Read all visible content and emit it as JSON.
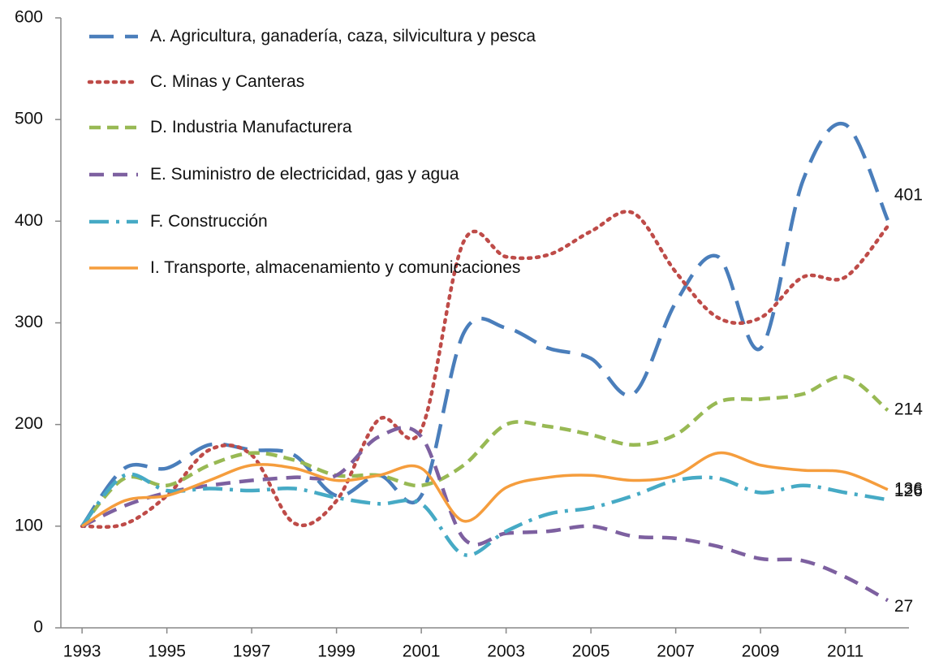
{
  "chart_data": {
    "type": "line",
    "x": [
      1993,
      1994,
      1995,
      1996,
      1997,
      1998,
      1999,
      2000,
      2001,
      2002,
      2003,
      2004,
      2005,
      2006,
      2007,
      2008,
      2009,
      2010,
      2011,
      2012
    ],
    "xlim": [
      1992.5,
      2012.5
    ],
    "xticks": [
      1993,
      1995,
      1997,
      1999,
      2001,
      2003,
      2005,
      2007,
      2009,
      2011
    ],
    "ylim": [
      0,
      600
    ],
    "yticks": [
      0,
      100,
      200,
      300,
      400,
      500,
      600
    ],
    "series": [
      {
        "name": "A. Agricultura, ganadería, caza, silvicultura y pesca",
        "color": "#4a7ebb",
        "dash": "30 14",
        "label_last": true,
        "values": [
          100,
          157,
          157,
          180,
          175,
          170,
          130,
          150,
          130,
          290,
          295,
          275,
          265,
          230,
          320,
          365,
          275,
          440,
          495,
          401
        ]
      },
      {
        "name": "C. Minas y Canteras",
        "color": "#be4b48",
        "dash": "3 7",
        "values": [
          100,
          102,
          130,
          175,
          170,
          103,
          125,
          205,
          195,
          380,
          365,
          367,
          390,
          408,
          350,
          305,
          305,
          345,
          345,
          395
        ]
      },
      {
        "name": "D. Industria Manufacturera",
        "color": "#98b954",
        "dash": "14 8",
        "label_last": true,
        "values": [
          100,
          147,
          140,
          160,
          172,
          165,
          150,
          150,
          140,
          160,
          200,
          198,
          190,
          180,
          190,
          222,
          225,
          230,
          247,
          214
        ]
      },
      {
        "name": "E. Suministro de electricidad, gas y agua",
        "color": "#7d60a0",
        "dash": "18 11",
        "label_last": true,
        "values": [
          100,
          120,
          133,
          140,
          145,
          148,
          150,
          188,
          188,
          88,
          93,
          95,
          100,
          90,
          88,
          80,
          68,
          66,
          50,
          27
        ]
      },
      {
        "name": "F. Construcción",
        "color": "#46aac5",
        "dash": "24 9 4 9",
        "label_last": true,
        "values": [
          100,
          150,
          135,
          137,
          135,
          137,
          128,
          122,
          122,
          72,
          95,
          112,
          118,
          130,
          145,
          147,
          133,
          140,
          133,
          126
        ]
      },
      {
        "name": "I. Transporte, almacenamiento y comunicaciones",
        "color": "#f59d3d",
        "dash": "none",
        "label_last": true,
        "values": [
          100,
          125,
          130,
          145,
          160,
          157,
          145,
          150,
          157,
          105,
          138,
          148,
          150,
          145,
          150,
          172,
          160,
          155,
          153,
          136
        ]
      }
    ]
  }
}
